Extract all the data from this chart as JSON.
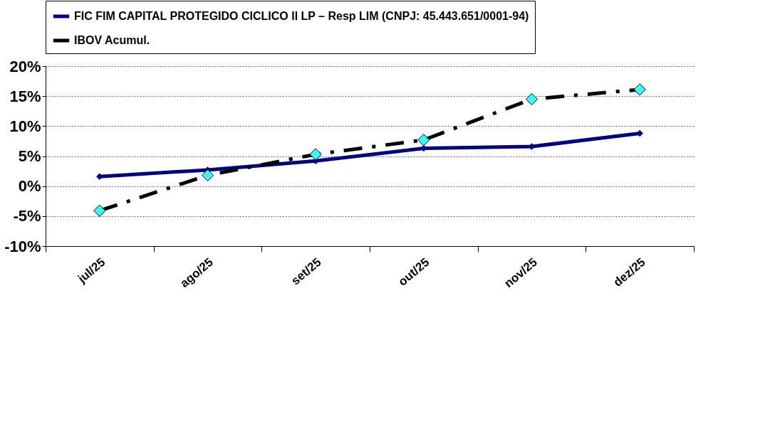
{
  "chart_data": {
    "type": "line",
    "categories": [
      "jul/25",
      "ago/25",
      "set/25",
      "out/25",
      "nov/25",
      "dez/25"
    ],
    "series": [
      {
        "name": "FIC FIM CAPITAL PROTEGIDO CICLICO II LP – Resp LIM (CNPJ: 45.443.651/0001-94)",
        "color": "#000080",
        "values": [
          1.6,
          2.7,
          4.2,
          6.3,
          6.6,
          8.8
        ],
        "marker": "diamond",
        "line_style": "solid"
      },
      {
        "name": "IBOV Acumul.",
        "color": "#000000",
        "values": [
          -4.1,
          1.8,
          5.3,
          7.7,
          14.5,
          16.1
        ],
        "marker": "diamond",
        "line_style": "dashed"
      }
    ],
    "ylim": [
      -10,
      20
    ],
    "yticks": [
      {
        "value": -10,
        "label": "-10%"
      },
      {
        "value": -5,
        "label": "-5%"
      },
      {
        "value": 0,
        "label": "0%"
      },
      {
        "value": 5,
        "label": "5%"
      },
      {
        "value": 10,
        "label": "10%"
      },
      {
        "value": 15,
        "label": "15%"
      },
      {
        "value": 20,
        "label": "20%"
      }
    ],
    "grid": "y",
    "legend": "top"
  }
}
